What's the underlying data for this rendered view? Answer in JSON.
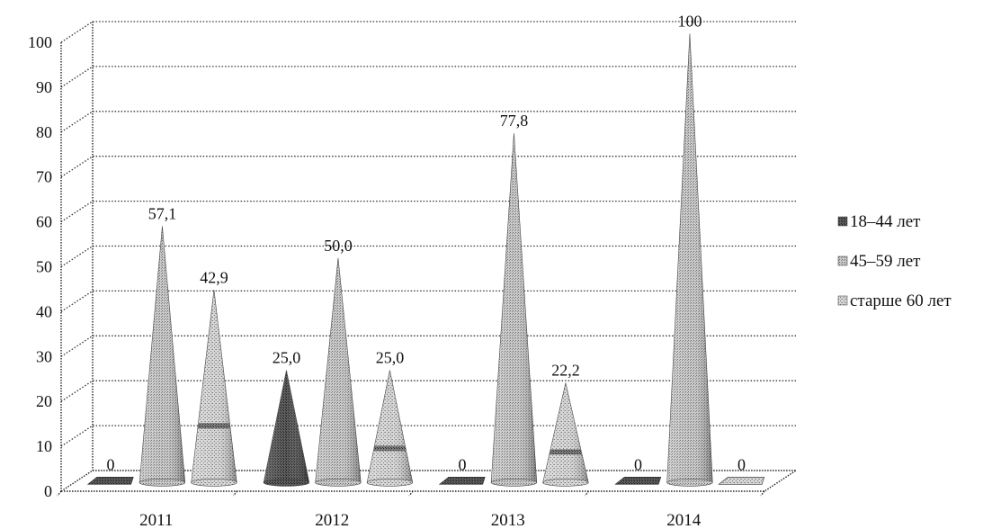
{
  "chart_data": {
    "type": "bar",
    "style": "3d-cone",
    "categories": [
      "2011",
      "2012",
      "2013",
      "2014"
    ],
    "series": [
      {
        "name": "18–44 лет",
        "values": [
          0,
          25,
          0,
          0
        ],
        "labels": [
          "0",
          "25,0",
          "0",
          "0"
        ],
        "color": "#4a4a4a"
      },
      {
        "name": "45–59 лет",
        "values": [
          57.1,
          50,
          77.8,
          100
        ],
        "labels": [
          "57,1",
          "50,0",
          "77,8",
          "100"
        ],
        "color": "#9a9a9a"
      },
      {
        "name": "старше 60 лет",
        "values": [
          42.9,
          25,
          22.2,
          0
        ],
        "labels": [
          "42,9",
          "25,0",
          "22,2",
          "0"
        ],
        "color": "#b8b8b8"
      }
    ],
    "y_ticks": [
      "0",
      "10",
      "20",
      "30",
      "40",
      "50",
      "60",
      "70",
      "80",
      "90",
      "100"
    ],
    "ylim": [
      0,
      100
    ],
    "grid": true,
    "legend_position": "right",
    "title": "",
    "xlabel": "",
    "ylabel": ""
  }
}
